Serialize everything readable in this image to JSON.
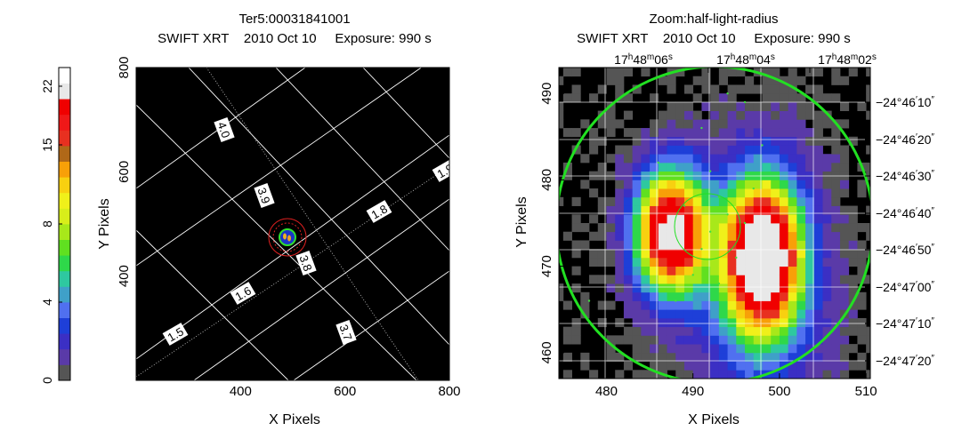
{
  "chart_data": [
    {
      "type": "heatmap",
      "title_lines": [
        "Ter5:00031841001",
        "SWIFT XRT    2010 Oct 10     Exposure: 990 s"
      ],
      "xlabel": "X Pixels",
      "ylabel": "Y Pixels",
      "xlim": [
        200,
        800
      ],
      "ylim": [
        200,
        800
      ],
      "x_ticks": [
        400,
        600,
        800
      ],
      "y_ticks": [
        400,
        600,
        800
      ],
      "grid_labels": [
        "4.0",
        "3.9",
        "3.8",
        "3.7",
        "1.9",
        "1.8",
        "1.6",
        "1.5"
      ],
      "source_center": [
        490,
        490
      ]
    },
    {
      "type": "heatmap",
      "title_lines": [
        "Zoom:half-light-radius",
        "SWIFT XRT    2010 Oct 10     Exposure: 990 s"
      ],
      "xlabel": "X Pixels",
      "ylabel": "Y Pixels",
      "xlim": [
        474.5,
        510.5
      ],
      "ylim": [
        457,
        493
      ],
      "x_ticks": [
        480,
        490,
        500,
        510
      ],
      "y_ticks": [
        460,
        470,
        480,
        490
      ],
      "ra_ticks": [
        {
          "h": "17",
          "m": "48",
          "s": "06"
        },
        {
          "h": "17",
          "m": "48",
          "s": "04"
        },
        {
          "h": "17",
          "m": "48",
          "s": "02"
        }
      ],
      "dec_ticks": [
        {
          "d": "−24°",
          "m": "46",
          "s": "10"
        },
        {
          "d": "−24°",
          "m": "46",
          "s": "20"
        },
        {
          "d": "−24°",
          "m": "46",
          "s": "30"
        },
        {
          "d": "−24°",
          "m": "46",
          "s": "40"
        },
        {
          "d": "−24°",
          "m": "46",
          "s": "50"
        },
        {
          "d": "−24°",
          "m": "47",
          "s": "00"
        },
        {
          "d": "−24°",
          "m": "47",
          "s": "10"
        },
        {
          "d": "−24°",
          "m": "47",
          "s": "20"
        }
      ]
    }
  ],
  "colorbar": {
    "ticks": [
      "0",
      "4",
      "8",
      "15",
      "22"
    ],
    "colors": [
      "#555555",
      "#5a3aa8",
      "#3b2fc4",
      "#1e3fd8",
      "#5070f0",
      "#3fa0c8",
      "#2ec8a0",
      "#2ed84a",
      "#60e020",
      "#a8e81a",
      "#d8ee1a",
      "#f0f01a",
      "#f8d010",
      "#f8a008",
      "#b06818",
      "#e83020",
      "#f01818",
      "#f00000",
      "#e8e8e8",
      "#ffffff"
    ]
  }
}
